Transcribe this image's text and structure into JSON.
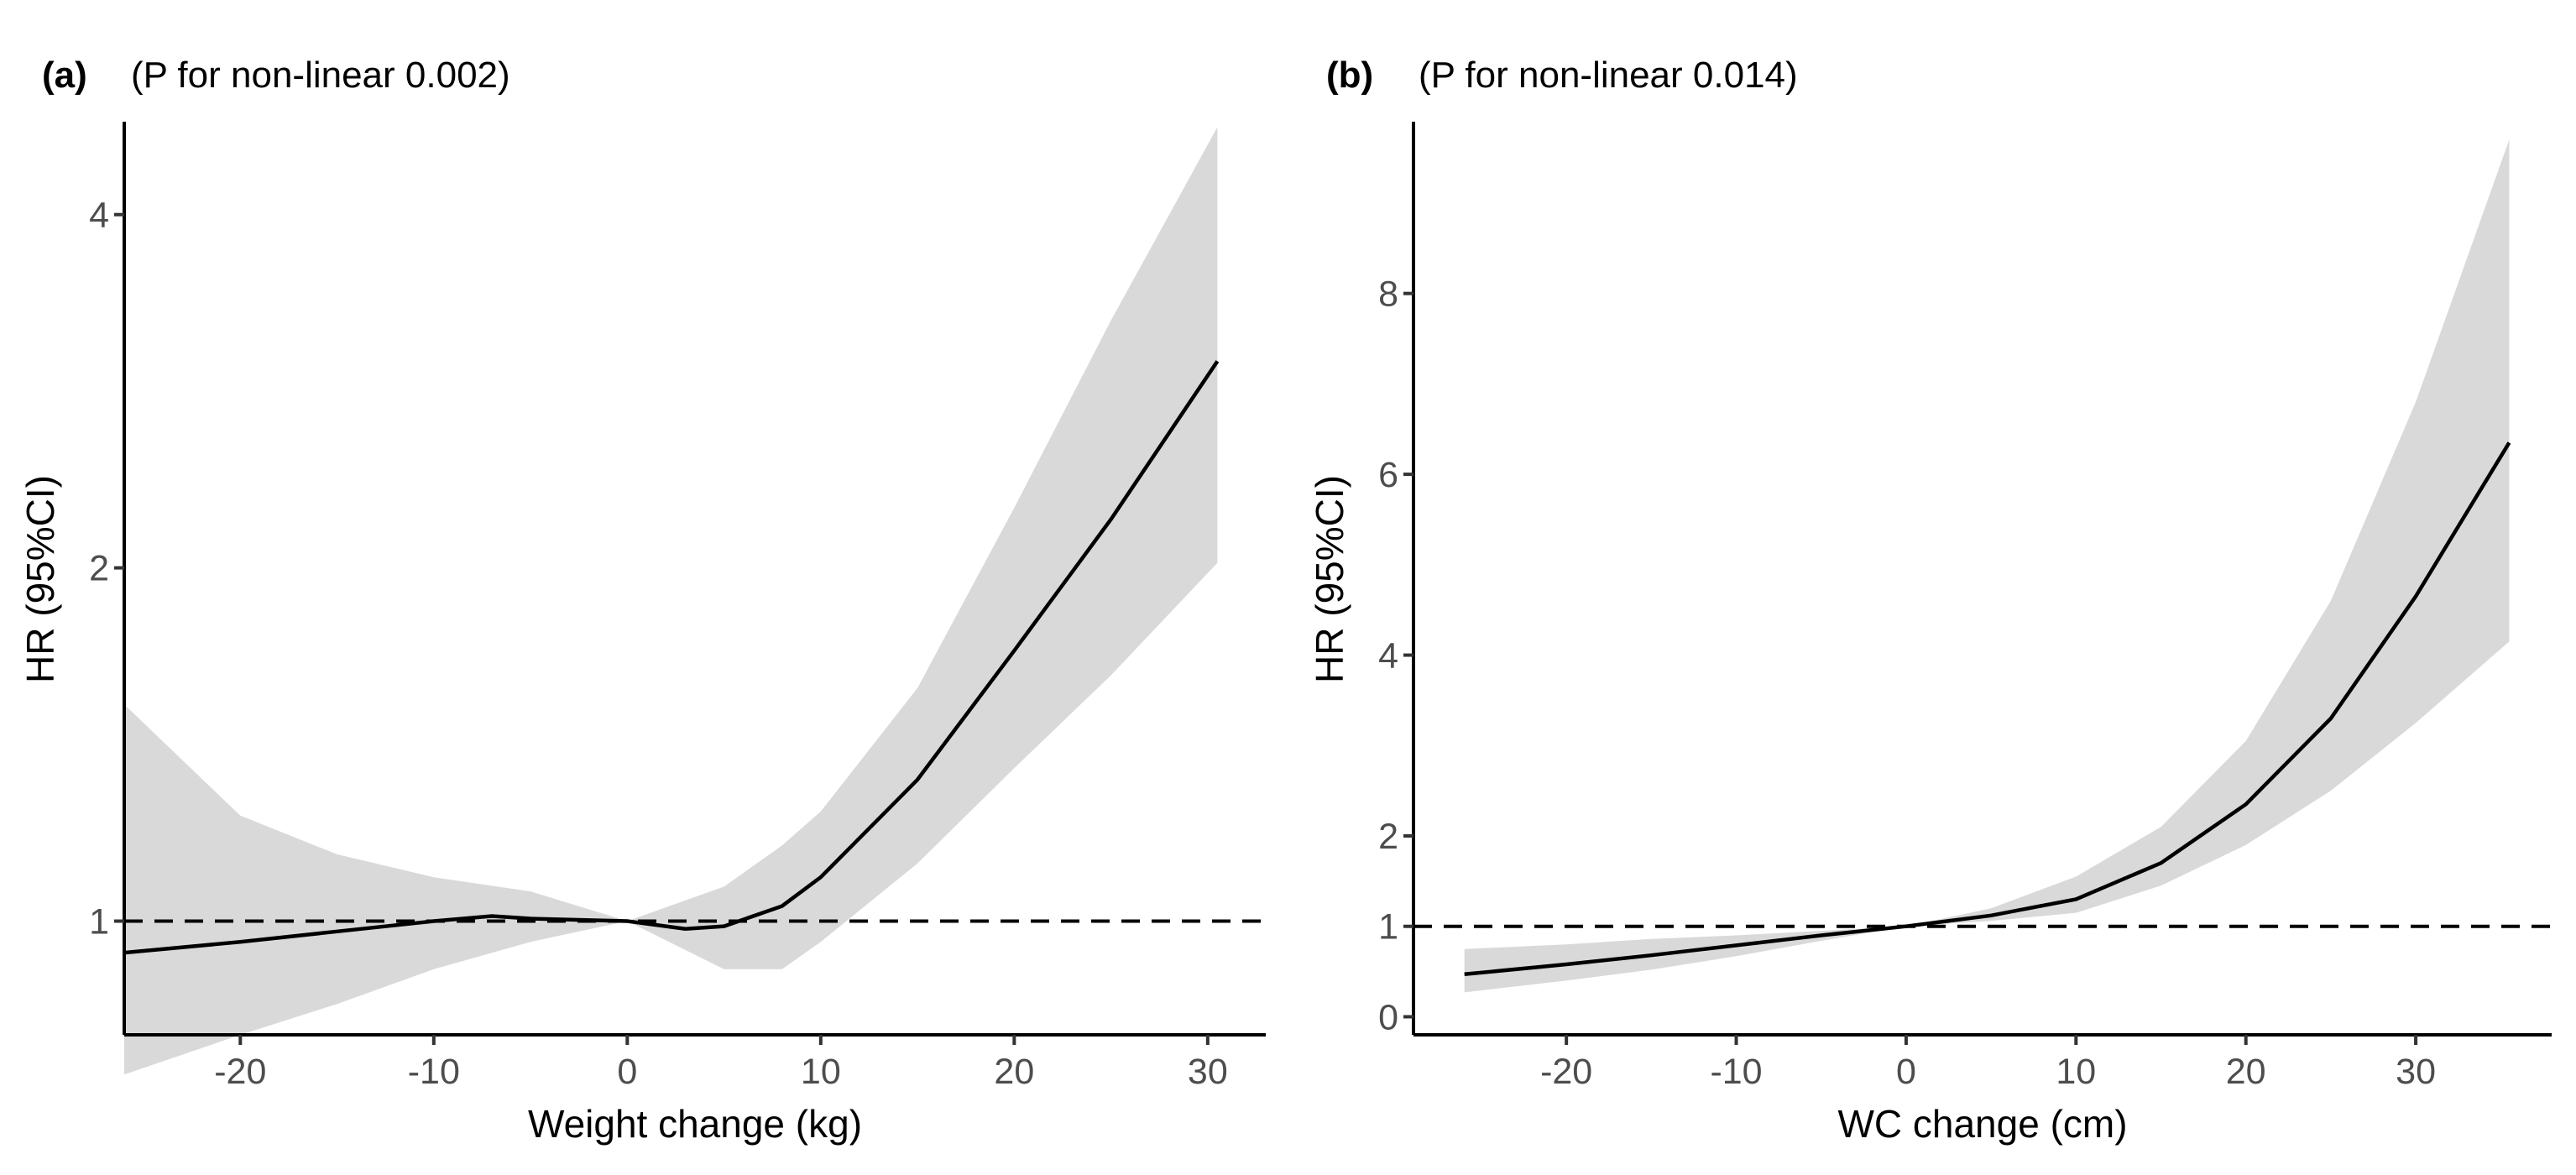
{
  "chart_data": [
    {
      "type": "line",
      "panel_label": "(a)",
      "annotation": "(P for non-linear 0.002)",
      "xlabel": "Weight change (kg)",
      "ylabel": "HR (95%CI)",
      "xlim": [
        -26,
        33
      ],
      "ylim": [
        0.8,
        4.8
      ],
      "y_scale": "log",
      "xticks": [
        -20,
        -10,
        0,
        10,
        20,
        30
      ],
      "xtick_labels": [
        "-20",
        "-10",
        "0",
        "10",
        "20",
        "30"
      ],
      "yticks": [
        1,
        2,
        4
      ],
      "ytick_labels": [
        "1",
        "2",
        "4"
      ],
      "reference_line": 1,
      "colors": {
        "curve": "#000000",
        "band": "#d9d9d9",
        "reference": "#000000"
      },
      "series": [
        {
          "name": "HR",
          "x": [
            -26,
            -20,
            -15,
            -10,
            -7,
            -5,
            0,
            3,
            5,
            8,
            10,
            15,
            20,
            25,
            30.5
          ],
          "y": [
            0.94,
            0.96,
            0.98,
            1.0,
            1.01,
            1.005,
            1.0,
            0.985,
            0.99,
            1.03,
            1.09,
            1.32,
            1.7,
            2.2,
            3.0
          ]
        },
        {
          "name": "95% CI",
          "x": [
            -26,
            -20,
            -15,
            -10,
            -5,
            0,
            5,
            8,
            10,
            15,
            20,
            25,
            30.5
          ],
          "lower": [
            0.74,
            0.8,
            0.85,
            0.91,
            0.96,
            1.0,
            0.91,
            0.91,
            0.96,
            1.12,
            1.35,
            1.62,
            2.02
          ],
          "upper": [
            1.53,
            1.23,
            1.14,
            1.09,
            1.06,
            1.0,
            1.07,
            1.16,
            1.24,
            1.58,
            2.25,
            3.25,
            4.75
          ]
        }
      ]
    },
    {
      "type": "line",
      "panel_label": "(b)",
      "annotation": "(P for non-linear 0.014)",
      "xlabel": "WC change (cm)",
      "ylabel": "HR (95%CI)",
      "xlim": [
        -29,
        38
      ],
      "ylim": [
        -0.2,
        9.9
      ],
      "y_scale": "linear",
      "xticks": [
        -20,
        -10,
        0,
        10,
        20,
        30
      ],
      "xtick_labels": [
        "-20",
        "-10",
        "0",
        "10",
        "20",
        "30"
      ],
      "yticks": [
        0,
        1,
        2,
        4,
        6,
        8
      ],
      "ytick_labels": [
        "0",
        "1",
        "2",
        "4",
        "6",
        "8"
      ],
      "reference_line": 1,
      "colors": {
        "curve": "#000000",
        "band": "#d9d9d9",
        "reference": "#000000"
      },
      "series": [
        {
          "name": "HR",
          "x": [
            -26,
            -20,
            -15,
            -10,
            -5,
            0,
            5,
            10,
            15,
            20,
            25,
            30,
            35.5
          ],
          "y": [
            0.47,
            0.58,
            0.68,
            0.79,
            0.9,
            1.0,
            1.12,
            1.3,
            1.7,
            2.35,
            3.3,
            4.65,
            6.35
          ]
        },
        {
          "name": "95% CI",
          "x": [
            -26,
            -20,
            -15,
            -10,
            -5,
            0,
            5,
            10,
            15,
            20,
            25,
            30,
            35.5
          ],
          "lower": [
            0.27,
            0.4,
            0.52,
            0.67,
            0.84,
            1.0,
            1.06,
            1.15,
            1.45,
            1.9,
            2.5,
            3.25,
            4.15
          ],
          "upper": [
            0.75,
            0.8,
            0.86,
            0.9,
            0.95,
            1.0,
            1.2,
            1.55,
            2.1,
            3.05,
            4.6,
            6.8,
            9.7
          ]
        }
      ]
    }
  ]
}
